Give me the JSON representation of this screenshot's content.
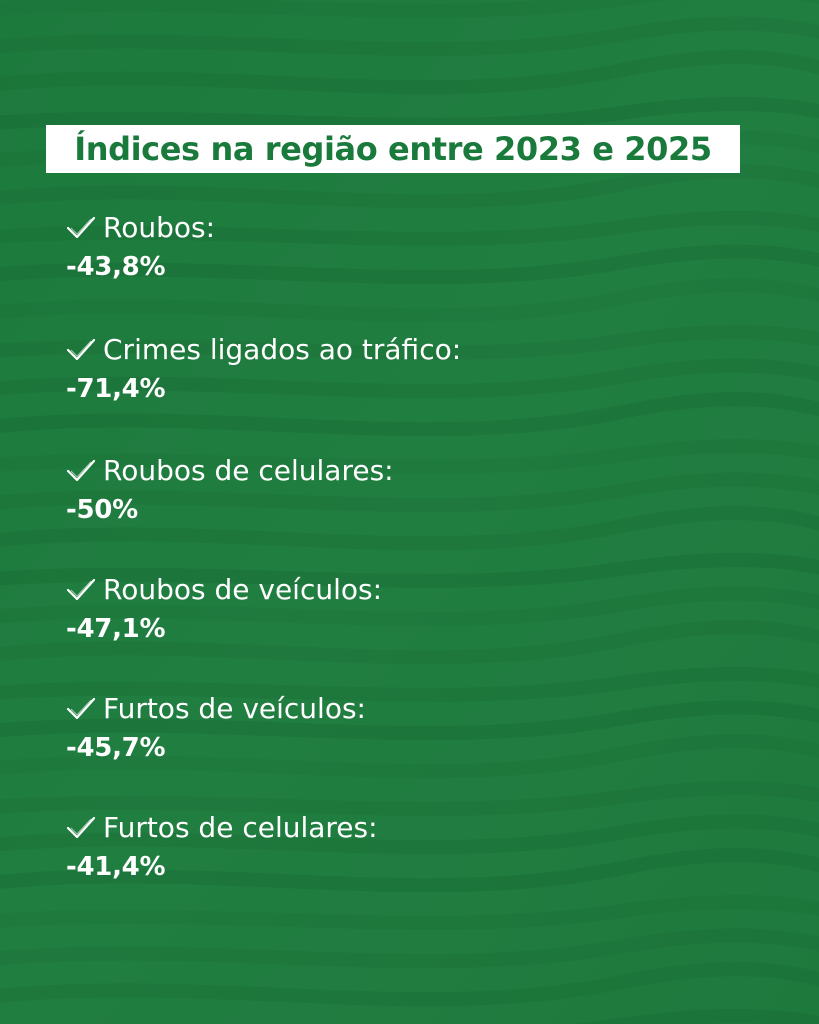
{
  "title": "Índices na região entre 2023 e 2025",
  "colors": {
    "background": "#1f7a3e",
    "title_box": "#ffffff",
    "title_text": "#1a7a3c",
    "text": "#ffffff"
  },
  "stats": [
    {
      "label": "Roubos:",
      "value": "-43,8%",
      "icon": "check-icon"
    },
    {
      "label": "Crimes ligados ao tráfico:",
      "value": "-71,4%",
      "icon": "check-icon"
    },
    {
      "label": "Roubos de celulares:",
      "value": "-50%",
      "icon": "check-icon"
    },
    {
      "label": "Roubos de veículos:",
      "value": "-47,1%",
      "icon": "check-icon"
    },
    {
      "label": "Furtos de veículos:",
      "value": "-45,7%",
      "icon": "check-icon"
    },
    {
      "label": "Furtos de celulares:",
      "value": "-41,4%",
      "icon": "check-icon"
    }
  ]
}
